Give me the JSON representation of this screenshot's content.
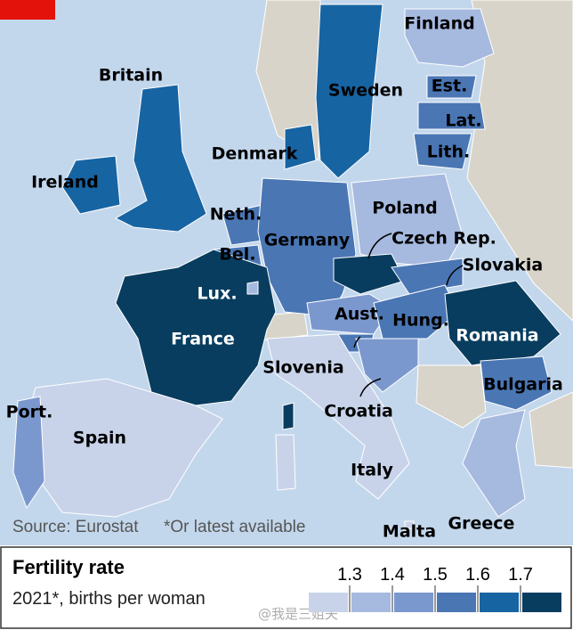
{
  "title": "Fertility rate",
  "subtitle": "2021*, births per woman",
  "source": "Source: Eurostat",
  "footnote": "*Or latest available",
  "watermark": "@我是三姐夫",
  "legend": {
    "ticks": [
      1.3,
      1.4,
      1.5,
      1.6,
      1.7
    ],
    "colors": [
      "#c8d3ea",
      "#a6b9df",
      "#7b98ce",
      "#4a76b4",
      "#1764a3",
      "#083d5f"
    ]
  },
  "countries": [
    {
      "label": "Finland",
      "color": "#a6b9df"
    },
    {
      "label": "Sweden",
      "color": "#1764a3"
    },
    {
      "label": "Est.",
      "color": "#4a76b4"
    },
    {
      "label": "Lat.",
      "color": "#4a76b4"
    },
    {
      "label": "Lith.",
      "color": "#4a76b4"
    },
    {
      "label": "Britain",
      "color": "#1764a3"
    },
    {
      "label": "Ireland",
      "color": "#1764a3"
    },
    {
      "label": "Denmark",
      "color": "#1764a3"
    },
    {
      "label": "Neth.",
      "color": "#4a76b4"
    },
    {
      "label": "Bel.",
      "color": "#4a76b4"
    },
    {
      "label": "Germany",
      "color": "#4a76b4"
    },
    {
      "label": "Poland",
      "color": "#a6b9df"
    },
    {
      "label": "Czech Rep.",
      "color": "#083d5f"
    },
    {
      "label": "Slovakia",
      "color": "#4a76b4"
    },
    {
      "label": "Aust.",
      "color": "#7b98ce"
    },
    {
      "label": "Hung.",
      "color": "#4a76b4"
    },
    {
      "label": "Romania",
      "color": "#083d5f"
    },
    {
      "label": "Bulgaria",
      "color": "#4a76b4"
    },
    {
      "label": "Slovenia",
      "color": "#4a76b4"
    },
    {
      "label": "Croatia",
      "color": "#7b98ce"
    },
    {
      "label": "Italy",
      "color": "#c8d3ea"
    },
    {
      "label": "France",
      "color": "#083d5f"
    },
    {
      "label": "Lux.",
      "color": "#a6b9df"
    },
    {
      "label": "Spain",
      "color": "#c8d3ea"
    },
    {
      "label": "Port.",
      "color": "#7b98ce"
    },
    {
      "label": "Greece",
      "color": "#a6b9df"
    },
    {
      "label": "Malta",
      "color": "#c8d3ea"
    }
  ]
}
